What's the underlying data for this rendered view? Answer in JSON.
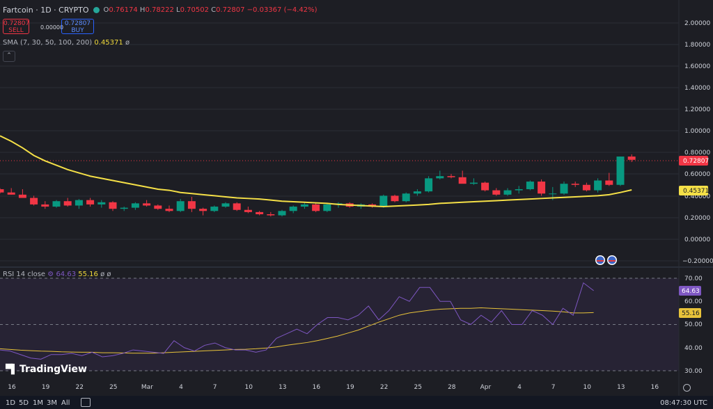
{
  "header": {
    "symbol": "Fartcoin · 1D · CRYPTO",
    "open_label": "O",
    "open": "0.76174",
    "high_label": "H",
    "high": "0.78222",
    "low_label": "L",
    "low": "0.70502",
    "close_label": "C",
    "close": "0.72807",
    "change": "−0.03367 (−4.42%)"
  },
  "trade": {
    "sell_price": "0.72807",
    "sell_label": "SELL",
    "spread": "0.00000",
    "buy_price": "0.72807",
    "buy_label": "BUY"
  },
  "sma": {
    "label": "SMA (7, 30, 50, 100, 200)",
    "value": "0.45371",
    "extra": "ø"
  },
  "rsi": {
    "label": "RSI 14 close",
    "value1": "64.63",
    "value2": "55.16",
    "extra": "ø ø"
  },
  "colors": {
    "up": "#089981",
    "down": "#f23645",
    "sma": "#f5e047",
    "rsi": "#7e57c2",
    "rsi_ma": "#e8c33a",
    "bg": "#1d1e24"
  },
  "logo": "TradingView",
  "bottom": {
    "ranges": [
      "1D",
      "5D",
      "1M",
      "3M",
      "All"
    ],
    "time": "08:47:30 UTC"
  },
  "chart_data": [
    {
      "type": "candlestick",
      "title": "Fartcoin · 1D · CRYPTO",
      "y_ticks": [
        "2.00000",
        "1.80000",
        "1.60000",
        "1.40000",
        "1.20000",
        "1.00000",
        "0.80000",
        "0.60000",
        "0.40000",
        "0.20000",
        "0.00000",
        "−0.20000"
      ],
      "ylim": [
        -0.2,
        2.0
      ],
      "last_price": "0.72807",
      "sma_value": "0.45371",
      "x_ticks": [
        "16",
        "19",
        "22",
        "25",
        "Mar",
        "4",
        "7",
        "10",
        "13",
        "16",
        "19",
        "22",
        "25",
        "28",
        "Apr",
        "4",
        "7",
        "10",
        "13",
        "16"
      ],
      "candles": [
        [
          0.46,
          0.47,
          0.42,
          0.43
        ],
        [
          0.43,
          0.47,
          0.41,
          0.41
        ],
        [
          0.41,
          0.46,
          0.38,
          0.38
        ],
        [
          0.38,
          0.4,
          0.31,
          0.32
        ],
        [
          0.32,
          0.35,
          0.28,
          0.3
        ],
        [
          0.3,
          0.36,
          0.29,
          0.35
        ],
        [
          0.35,
          0.38,
          0.3,
          0.31
        ],
        [
          0.31,
          0.37,
          0.28,
          0.36
        ],
        [
          0.36,
          0.38,
          0.3,
          0.32
        ],
        [
          0.32,
          0.36,
          0.29,
          0.34
        ],
        [
          0.34,
          0.35,
          0.26,
          0.28
        ],
        [
          0.28,
          0.3,
          0.26,
          0.29
        ],
        [
          0.29,
          0.34,
          0.27,
          0.33
        ],
        [
          0.33,
          0.36,
          0.3,
          0.31
        ],
        [
          0.31,
          0.32,
          0.27,
          0.28
        ],
        [
          0.28,
          0.31,
          0.25,
          0.26
        ],
        [
          0.26,
          0.37,
          0.25,
          0.35
        ],
        [
          0.35,
          0.39,
          0.25,
          0.28
        ],
        [
          0.28,
          0.29,
          0.22,
          0.26
        ],
        [
          0.26,
          0.31,
          0.25,
          0.3
        ],
        [
          0.3,
          0.34,
          0.29,
          0.33
        ],
        [
          0.33,
          0.34,
          0.26,
          0.27
        ],
        [
          0.27,
          0.3,
          0.24,
          0.25
        ],
        [
          0.25,
          0.26,
          0.22,
          0.23
        ],
        [
          0.23,
          0.25,
          0.21,
          0.22
        ],
        [
          0.22,
          0.27,
          0.21,
          0.26
        ],
        [
          0.26,
          0.31,
          0.24,
          0.3
        ],
        [
          0.3,
          0.34,
          0.28,
          0.32
        ],
        [
          0.32,
          0.33,
          0.25,
          0.26
        ],
        [
          0.26,
          0.33,
          0.25,
          0.32
        ],
        [
          0.32,
          0.34,
          0.29,
          0.33
        ],
        [
          0.33,
          0.34,
          0.29,
          0.3
        ],
        [
          0.3,
          0.33,
          0.28,
          0.32
        ],
        [
          0.32,
          0.33,
          0.29,
          0.3
        ],
        [
          0.3,
          0.41,
          0.29,
          0.4
        ],
        [
          0.4,
          0.41,
          0.34,
          0.35
        ],
        [
          0.35,
          0.43,
          0.34,
          0.42
        ],
        [
          0.42,
          0.46,
          0.4,
          0.44
        ],
        [
          0.44,
          0.58,
          0.43,
          0.56
        ],
        [
          0.56,
          0.63,
          0.55,
          0.58
        ],
        [
          0.58,
          0.6,
          0.56,
          0.57
        ],
        [
          0.57,
          0.63,
          0.52,
          0.51
        ],
        [
          0.51,
          0.56,
          0.5,
          0.52
        ],
        [
          0.52,
          0.53,
          0.44,
          0.45
        ],
        [
          0.45,
          0.47,
          0.4,
          0.41
        ],
        [
          0.41,
          0.47,
          0.4,
          0.45
        ],
        [
          0.45,
          0.49,
          0.42,
          0.46
        ],
        [
          0.46,
          0.54,
          0.45,
          0.53
        ],
        [
          0.53,
          0.55,
          0.4,
          0.42
        ],
        [
          0.42,
          0.48,
          0.36,
          0.42
        ],
        [
          0.42,
          0.53,
          0.41,
          0.51
        ],
        [
          0.51,
          0.53,
          0.48,
          0.5
        ],
        [
          0.5,
          0.52,
          0.44,
          0.45
        ],
        [
          0.45,
          0.56,
          0.43,
          0.54
        ],
        [
          0.54,
          0.61,
          0.49,
          0.5
        ],
        [
          0.5,
          0.76,
          0.49,
          0.76
        ],
        [
          0.76,
          0.78,
          0.71,
          0.73
        ]
      ],
      "sma": [
        0.95,
        0.9,
        0.84,
        0.77,
        0.72,
        0.68,
        0.64,
        0.61,
        0.58,
        0.56,
        0.54,
        0.52,
        0.5,
        0.48,
        0.46,
        0.45,
        0.43,
        0.42,
        0.41,
        0.4,
        0.39,
        0.38,
        0.375,
        0.37,
        0.36,
        0.35,
        0.345,
        0.34,
        0.335,
        0.33,
        0.32,
        0.315,
        0.31,
        0.305,
        0.3,
        0.305,
        0.31,
        0.315,
        0.32,
        0.33,
        0.335,
        0.34,
        0.345,
        0.35,
        0.355,
        0.36,
        0.365,
        0.37,
        0.375,
        0.38,
        0.385,
        0.39,
        0.395,
        0.4,
        0.41,
        0.43,
        0.45371
      ]
    },
    {
      "type": "line",
      "title": "RSI 14 close",
      "y_ticks": [
        "70.00",
        "60.00",
        "50.00",
        "40.00",
        "30.00"
      ],
      "ylim": [
        28,
        72
      ],
      "series": [
        {
          "name": "RSI",
          "values": [
            39,
            38.5,
            37,
            35.5,
            35,
            37,
            37,
            37.5,
            36.5,
            38,
            36,
            36.5,
            37.5,
            39,
            38.5,
            38,
            37.5,
            43,
            40,
            38.5,
            41,
            42,
            40,
            39,
            39,
            38,
            39,
            44,
            46,
            48,
            46,
            50,
            53,
            53,
            52,
            54,
            58,
            52,
            56,
            62,
            60,
            66,
            66,
            60,
            60,
            52,
            50,
            54,
            51,
            56,
            50,
            50,
            56,
            54,
            50,
            57,
            54,
            68,
            64.63
          ]
        },
        {
          "name": "RSI MA",
          "values": [
            39.5,
            39.2,
            38.9,
            38.7,
            38.5,
            38.4,
            38.2,
            38.1,
            38,
            38,
            37.8,
            37.8,
            37.7,
            37.6,
            37.6,
            37.6,
            37.8,
            38,
            38.2,
            38.4,
            38.6,
            38.8,
            39,
            39.2,
            39.3,
            39.5,
            39.8,
            40.3,
            41,
            41.6,
            42.2,
            43,
            44,
            45,
            46.3,
            47.6,
            49.3,
            51,
            52.5,
            54,
            55,
            55.6,
            56.2,
            56.6,
            56.8,
            57,
            57,
            57.2,
            57,
            56.8,
            56.6,
            56.4,
            56.2,
            56,
            55.8,
            55.5,
            55,
            55,
            55.16
          ]
        }
      ]
    }
  ]
}
